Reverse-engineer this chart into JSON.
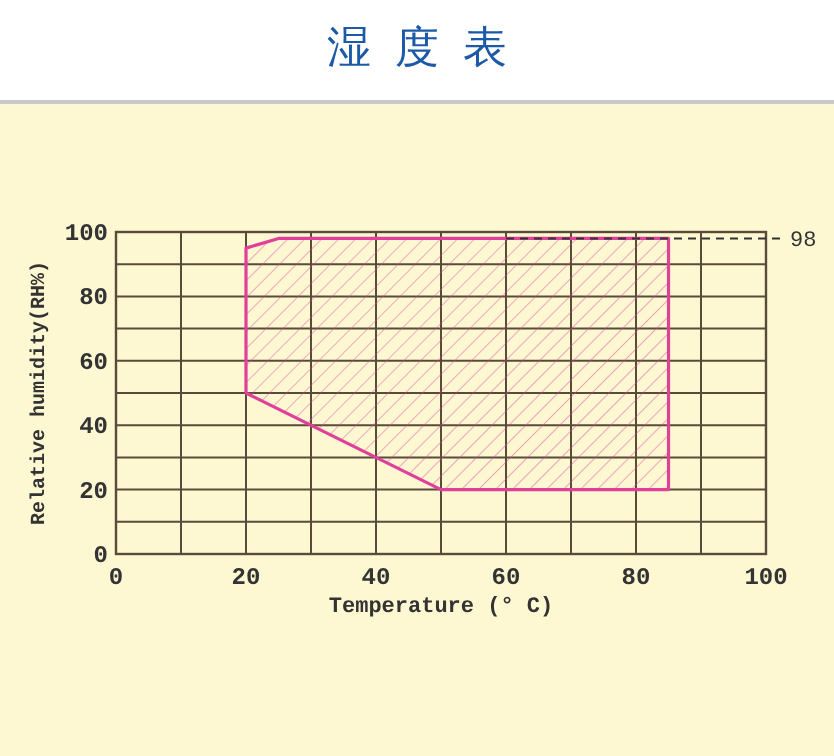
{
  "chart_data": {
    "type": "area",
    "title": "湿度表",
    "xlabel": "Temperature (° C)",
    "ylabel": "Relative humidity(RH%)",
    "xlim": [
      0,
      100
    ],
    "ylim": [
      0,
      100
    ],
    "xticks": [
      0,
      {
        "value": 10,
        "label": null
      },
      20,
      {
        "value": 30,
        "label": null
      },
      40,
      {
        "value": 50,
        "label": null
      },
      60,
      {
        "value": 70,
        "label": null
      },
      80,
      {
        "value": 90,
        "label": null
      },
      100
    ],
    "yticks": [
      0,
      {
        "value": 10,
        "label": null
      },
      20,
      {
        "value": 30,
        "label": null
      },
      40,
      {
        "value": 50,
        "label": null
      },
      60,
      {
        "value": 70,
        "label": null
      },
      80,
      {
        "value": 90,
        "label": null
      },
      100
    ],
    "grid": true,
    "series": [
      {
        "color": "#e0409a",
        "x": [
          20,
          20,
          25,
          85,
          85,
          50,
          20
        ],
        "values": [
          50,
          95,
          98,
          98,
          20,
          20,
          50
        ]
      }
    ],
    "ref_lines": [
      {
        "axis": "y",
        "value": 98,
        "label": "98",
        "line_style": "dashed"
      }
    ]
  }
}
